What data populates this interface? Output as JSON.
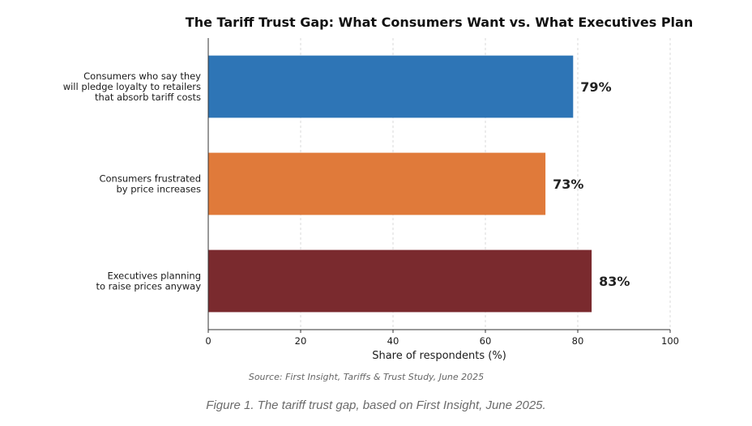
{
  "chart_data": {
    "type": "bar",
    "orientation": "horizontal",
    "title": "The Tariff Trust Gap: What Consumers Want vs. What Executives Plan",
    "xlabel": "Share of respondents (%)",
    "ylabel": "",
    "xlim": [
      0,
      100
    ],
    "x_ticks": [
      0,
      20,
      40,
      60,
      80,
      100
    ],
    "grid": "vertical dashed",
    "categories": [
      [
        "Consumers who say they",
        "will pledge loyalty to retailers",
        "that absorb tariff costs"
      ],
      [
        "Consumers frustrated",
        "by price increases"
      ],
      [
        "Executives planning",
        "to raise prices anyway"
      ]
    ],
    "values": [
      79,
      73,
      83
    ],
    "value_labels": [
      "79%",
      "73%",
      "83%"
    ],
    "colors": [
      "#2e75b6",
      "#e07a3a",
      "#7a2a2e"
    ],
    "source": "Source: First Insight, Tariffs & Trust Study, June 2025"
  },
  "caption": "Figure 1. The tariff trust gap, based on First Insight, June 2025."
}
